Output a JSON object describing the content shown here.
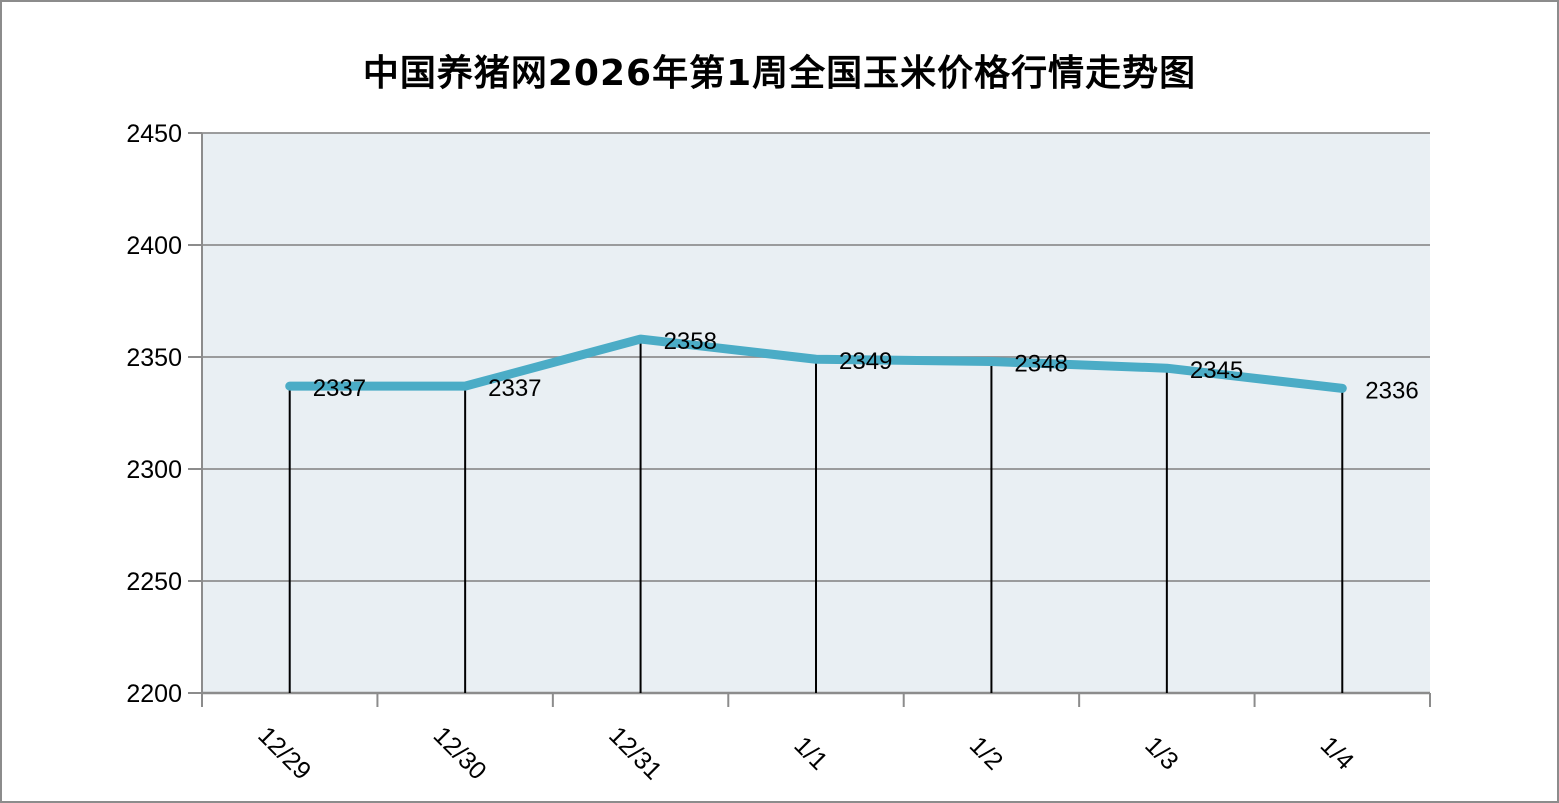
{
  "chart_data": {
    "type": "line",
    "title": "中国养猪网2026年第1周全国玉米价格行情走势图",
    "categories": [
      "12/29",
      "12/30",
      "12/31",
      "1/1",
      "1/2",
      "1/3",
      "1/4"
    ],
    "values": [
      2337,
      2337,
      2358,
      2349,
      2348,
      2345,
      2336
    ],
    "data_labels": [
      "2337",
      "2337",
      "2358",
      "2349",
      "2348",
      "2345",
      "2336"
    ],
    "yticks": [
      2200,
      2250,
      2300,
      2350,
      2400,
      2450
    ],
    "ylim": [
      2200,
      2450
    ],
    "xlabel": "",
    "ylabel": "",
    "grid": "horizontal",
    "legend": "none",
    "show_data_labels": true,
    "colors": {
      "line": "#4bacc6",
      "plot_background": "#e9eff3",
      "gridline": "#8f8f8f",
      "axis": "#8c8c8c",
      "drop_line": "#000000",
      "text": "#000000",
      "frame_border": "#8c8c8c"
    }
  }
}
